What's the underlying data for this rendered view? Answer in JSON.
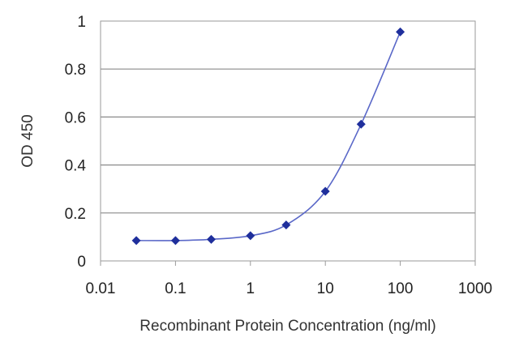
{
  "chart_data": {
    "type": "line",
    "title": "",
    "xlabel": "Recombinant Protein Concentration (ng/ml)",
    "ylabel": "OD 450",
    "x_scale": "log",
    "xlim": [
      0.01,
      1000
    ],
    "ylim": [
      0,
      1
    ],
    "grid": "horizontal",
    "legend": "none",
    "x_tick_labels": [
      "0.01",
      "0.1",
      "1",
      "10",
      "100",
      "1000"
    ],
    "x_ticks": [
      0.01,
      0.1,
      1,
      10,
      100,
      1000
    ],
    "y_tick_labels": [
      "0",
      "0.2",
      "0.4",
      "0.6",
      "0.8",
      "1"
    ],
    "y_ticks": [
      0,
      0.2,
      0.4,
      0.6,
      0.8,
      1
    ],
    "series": [
      {
        "x": [
          0.03,
          0.1,
          0.3,
          1,
          3,
          10,
          30,
          100
        ],
        "y": [
          0.085,
          0.085,
          0.09,
          0.105,
          0.15,
          0.29,
          0.57,
          0.955
        ]
      }
    ],
    "colors": {
      "series": "#1f2f9c",
      "curve": "#5a68c8",
      "grid": "#8a8a8a",
      "axis": "#9a9a9a"
    }
  }
}
